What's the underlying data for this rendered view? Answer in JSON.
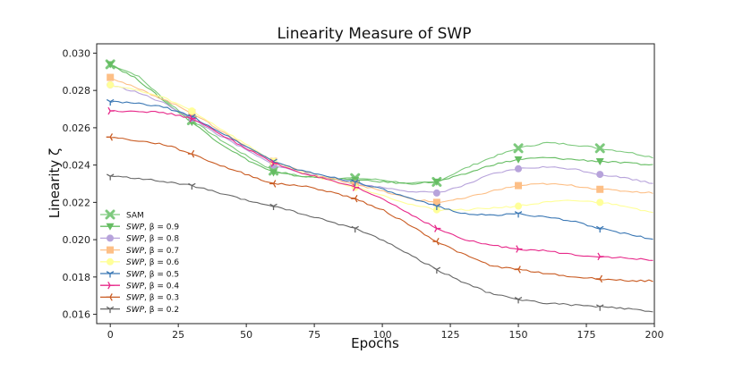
{
  "chart_data": {
    "type": "line",
    "title": "Linearity Measure of SWP",
    "xlabel": "Epochs",
    "ylabel": "Linearity ζ",
    "xlim": [
      -5,
      200
    ],
    "ylim": [
      0.0155,
      0.0305
    ],
    "xticks": [
      0,
      25,
      50,
      75,
      100,
      125,
      150,
      175,
      200
    ],
    "yticks": [
      0.016,
      0.018,
      0.02,
      0.022,
      0.024,
      0.026,
      0.028,
      0.03
    ],
    "ytick_labels": [
      "0.016",
      "0.018",
      "0.020",
      "0.022",
      "0.024",
      "0.026",
      "0.028",
      "0.030"
    ],
    "marker_epochs": [
      0,
      30,
      60,
      90,
      120,
      150,
      180
    ],
    "legend_position": "lower-left",
    "x": [
      0,
      10,
      20,
      30,
      40,
      50,
      60,
      70,
      80,
      90,
      100,
      110,
      120,
      130,
      140,
      150,
      160,
      170,
      180,
      190,
      200
    ],
    "series": [
      {
        "name": "SAM",
        "legend_prefix": "SAM",
        "legend_beta": "",
        "color": "#7dc97d",
        "marker": "x",
        "values": [
          0.0294,
          0.0288,
          0.0275,
          0.0264,
          0.0254,
          0.0245,
          0.0237,
          0.0234,
          0.0233,
          0.0233,
          0.0232,
          0.023,
          0.0231,
          0.0238,
          0.0244,
          0.0249,
          0.0252,
          0.0251,
          0.0249,
          0.0247,
          0.0244
        ]
      },
      {
        "name": "SWP, β = 0.9",
        "legend_prefix": "SWP",
        "legend_beta": ", β = 0.9",
        "color": "#66bd63",
        "marker": "v",
        "values": [
          0.0294,
          0.0286,
          0.0274,
          0.0263,
          0.0252,
          0.0243,
          0.0236,
          0.0234,
          0.0233,
          0.0232,
          0.0231,
          0.023,
          0.0231,
          0.0235,
          0.024,
          0.0243,
          0.0244,
          0.0243,
          0.0242,
          0.0241,
          0.024
        ]
      },
      {
        "name": "SWP, β = 0.8",
        "legend_prefix": "SWP",
        "legend_beta": ", β = 0.8",
        "color": "#b7a3db",
        "marker": "o",
        "values": [
          0.0283,
          0.0279,
          0.0273,
          0.0265,
          0.0256,
          0.0248,
          0.024,
          0.0236,
          0.0233,
          0.023,
          0.0228,
          0.0226,
          0.0225,
          0.0229,
          0.0235,
          0.0238,
          0.0239,
          0.0238,
          0.0235,
          0.0233,
          0.023
        ]
      },
      {
        "name": "SWP, β = 0.7",
        "legend_prefix": "SWP",
        "legend_beta": ", β = 0.7",
        "color": "#fdbf86",
        "marker": "s",
        "values": [
          0.0287,
          0.0281,
          0.0275,
          0.0268,
          0.0259,
          0.025,
          0.0242,
          0.0237,
          0.0233,
          0.023,
          0.0226,
          0.0222,
          0.022,
          0.0222,
          0.0226,
          0.0229,
          0.023,
          0.0229,
          0.0227,
          0.0226,
          0.0225
        ]
      },
      {
        "name": "SWP, β = 0.6",
        "legend_prefix": "SWP",
        "legend_beta": ", β = 0.6",
        "color": "#ffff99",
        "marker": "o",
        "values": [
          0.0283,
          0.028,
          0.0276,
          0.0269,
          0.026,
          0.0251,
          0.0242,
          0.0236,
          0.0232,
          0.0228,
          0.0224,
          0.0219,
          0.0216,
          0.0216,
          0.0217,
          0.0218,
          0.022,
          0.0221,
          0.022,
          0.0218,
          0.0214
        ]
      },
      {
        "name": "SWP, β = 0.5",
        "legend_prefix": "SWP",
        "legend_beta": ", β = 0.5",
        "color": "#3a77b4",
        "marker": "1",
        "values": [
          0.0274,
          0.0273,
          0.0271,
          0.0266,
          0.0258,
          0.025,
          0.0242,
          0.0237,
          0.0234,
          0.0231,
          0.0227,
          0.0222,
          0.0218,
          0.0214,
          0.0213,
          0.0214,
          0.0212,
          0.021,
          0.0206,
          0.0203,
          0.02
        ]
      },
      {
        "name": "SWP, β = 0.4",
        "legend_prefix": "SWP",
        "legend_beta": ", β = 0.4",
        "color": "#e7298a",
        "marker": "4",
        "values": [
          0.0269,
          0.0269,
          0.0268,
          0.0265,
          0.0257,
          0.0249,
          0.0241,
          0.0236,
          0.0232,
          0.0228,
          0.0222,
          0.0214,
          0.0206,
          0.02,
          0.0197,
          0.0195,
          0.0194,
          0.0192,
          0.0191,
          0.019,
          0.0189
        ]
      },
      {
        "name": "SWP, β = 0.3",
        "legend_prefix": "SWP",
        "legend_beta": ", β = 0.3",
        "color": "#c95b22",
        "marker": "3",
        "values": [
          0.0255,
          0.0253,
          0.0251,
          0.0246,
          0.024,
          0.0235,
          0.023,
          0.0229,
          0.0226,
          0.0222,
          0.0216,
          0.0208,
          0.0199,
          0.0192,
          0.0186,
          0.0184,
          0.0182,
          0.018,
          0.0179,
          0.0178,
          0.0178
        ]
      },
      {
        "name": "SWP, β = 0.2",
        "legend_prefix": "SWP",
        "legend_beta": ", β = 0.2",
        "color": "#666666",
        "marker": "1",
        "values": [
          0.0234,
          0.0233,
          0.0231,
          0.0229,
          0.0225,
          0.0221,
          0.0218,
          0.0214,
          0.021,
          0.0206,
          0.02,
          0.0192,
          0.0184,
          0.0177,
          0.0171,
          0.0168,
          0.0166,
          0.0165,
          0.0164,
          0.0163,
          0.0161
        ]
      }
    ]
  }
}
